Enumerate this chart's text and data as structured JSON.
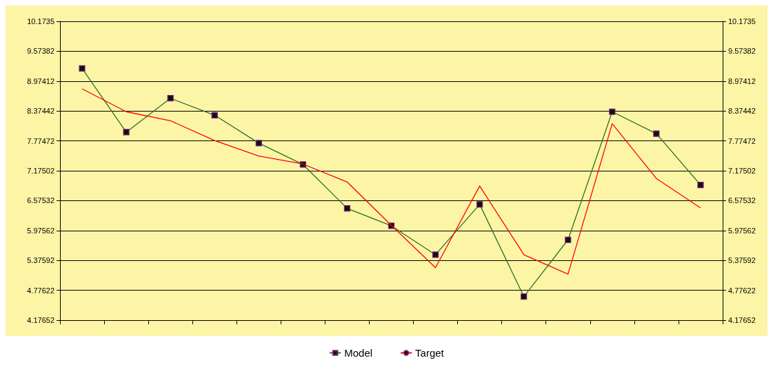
{
  "chart_data": {
    "type": "line",
    "categories": [
      null,
      null,
      null,
      null,
      null,
      null,
      null,
      null,
      null,
      null,
      null,
      null,
      null,
      null,
      null
    ],
    "series": [
      {
        "name": "Model",
        "color": "#2e6b2e",
        "marker": "square",
        "values": [
          9.23,
          7.95,
          8.63,
          8.29,
          7.73,
          7.3,
          6.42,
          6.07,
          5.49,
          6.5,
          4.65,
          5.79,
          8.36,
          7.92,
          6.89
        ]
      },
      {
        "name": "Target",
        "color": "#ff0000",
        "marker": "none",
        "values": [
          8.82,
          8.36,
          8.18,
          7.78,
          7.47,
          7.31,
          6.95,
          6.08,
          5.23,
          6.87,
          5.49,
          5.1,
          8.12,
          7.02,
          6.43
        ]
      }
    ],
    "ylim": [
      4.17652,
      10.1735
    ],
    "yticks": [
      4.17652,
      4.77622,
      5.37592,
      5.97562,
      6.57532,
      7.17502,
      7.77472,
      8.37442,
      8.97412,
      9.57382,
      10.1735
    ],
    "y2lim": [
      4.17652,
      10.1735
    ],
    "y2ticks": [
      4.17652,
      4.77622,
      5.37592,
      5.97562,
      6.57532,
      7.17502,
      7.77472,
      8.37442,
      8.97412,
      9.57382,
      10.1735
    ],
    "grid": "y",
    "legend": "bottom"
  }
}
